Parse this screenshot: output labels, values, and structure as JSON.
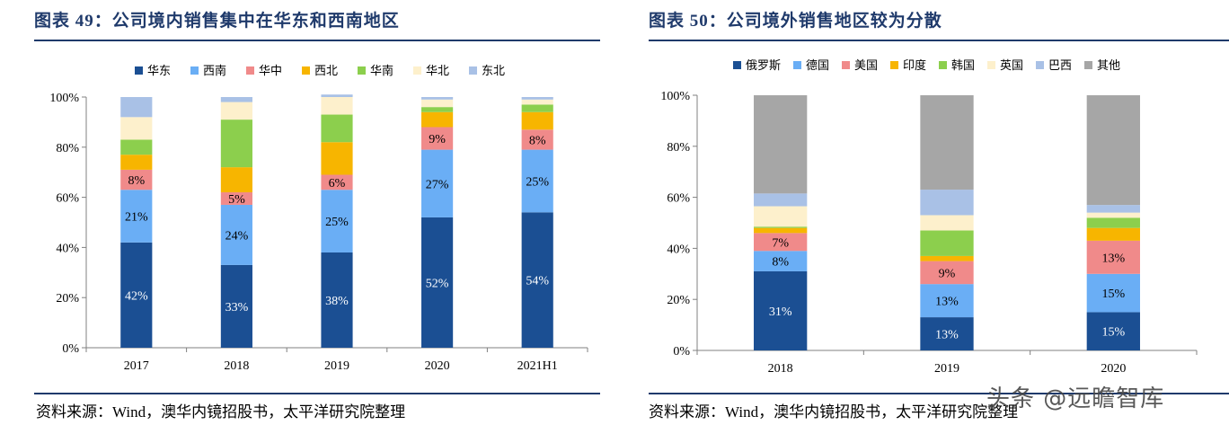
{
  "figures": {
    "left": {
      "title": "图表 49：公司境内销售集中在华东和西南地区",
      "source": "资料来源：Wind，澳华内镜招股书，太平洋研究院整理"
    },
    "right": {
      "title": "图表 50：公司境外销售地区较为分散",
      "source": "资料来源：Wind，澳华内镜招股书，太平洋研究院整理"
    }
  },
  "watermark": "头条 @远瞻智库",
  "chart_data": [
    {
      "type": "bar",
      "stacked": true,
      "categories": [
        "2017",
        "2018",
        "2019",
        "2020",
        "2021H1"
      ],
      "ylim": [
        0,
        100
      ],
      "yticks": [
        "0%",
        "20%",
        "40%",
        "60%",
        "80%",
        "100%"
      ],
      "legend_position": "top",
      "series": [
        {
          "name": "华东",
          "color": "#1b4f93",
          "values": [
            42,
            33,
            38,
            52,
            54
          ],
          "labels": [
            "42%",
            "33%",
            "38%",
            "52%",
            "54%"
          ]
        },
        {
          "name": "西南",
          "color": "#6aaef5",
          "values": [
            21,
            24,
            25,
            27,
            25
          ],
          "labels": [
            "21%",
            "24%",
            "25%",
            "27%",
            "25%"
          ]
        },
        {
          "name": "华中",
          "color": "#f08a8a",
          "values": [
            8,
            5,
            6,
            9,
            8
          ],
          "labels": [
            "8%",
            "5%",
            "6%",
            "9%",
            "8%"
          ]
        },
        {
          "name": "西北",
          "color": "#f7b500",
          "values": [
            6,
            10,
            13,
            6,
            7
          ],
          "labels": [
            "",
            "",
            "",
            "",
            ""
          ]
        },
        {
          "name": "华南",
          "color": "#8ccf4d",
          "values": [
            6,
            19,
            11,
            2,
            3
          ],
          "labels": [
            "",
            "",
            "",
            "",
            ""
          ]
        },
        {
          "name": "华北",
          "color": "#fdf0cc",
          "values": [
            9,
            7,
            7,
            3,
            2
          ],
          "labels": [
            "",
            "",
            "",
            "",
            ""
          ]
        },
        {
          "name": "东北",
          "color": "#a9c1e6",
          "values": [
            8,
            2,
            1,
            1,
            1
          ],
          "labels": [
            "",
            "",
            "",
            "",
            ""
          ]
        }
      ]
    },
    {
      "type": "bar",
      "stacked": true,
      "categories": [
        "2018",
        "2019",
        "2020"
      ],
      "ylim": [
        0,
        100
      ],
      "yticks": [
        "0%",
        "20%",
        "40%",
        "60%",
        "80%",
        "100%"
      ],
      "legend_position": "top",
      "series": [
        {
          "name": "俄罗斯",
          "color": "#1b4f93",
          "values": [
            31,
            13,
            15
          ],
          "labels": [
            "31%",
            "13%",
            "15%"
          ]
        },
        {
          "name": "德国",
          "color": "#6aaef5",
          "values": [
            8,
            13,
            15
          ],
          "labels": [
            "8%",
            "13%",
            "15%"
          ]
        },
        {
          "name": "美国",
          "color": "#f08a8a",
          "values": [
            7,
            9,
            13
          ],
          "labels": [
            "7%",
            "9%",
            "13%"
          ]
        },
        {
          "name": "印度",
          "color": "#f7b500",
          "values": [
            2,
            2,
            5
          ],
          "labels": [
            "",
            "",
            ""
          ]
        },
        {
          "name": "韩国",
          "color": "#8ccf4d",
          "values": [
            0.5,
            10,
            4
          ],
          "labels": [
            "",
            "",
            ""
          ]
        },
        {
          "name": "英国",
          "color": "#fdf0cc",
          "values": [
            8,
            6,
            2
          ],
          "labels": [
            "",
            "",
            ""
          ]
        },
        {
          "name": "巴西",
          "color": "#a9c1e6",
          "values": [
            5,
            10,
            3
          ],
          "labels": [
            "",
            "",
            ""
          ]
        },
        {
          "name": "其他",
          "color": "#a6a6a6",
          "values": [
            38.5,
            37,
            43
          ],
          "labels": [
            "",
            "",
            ""
          ]
        }
      ]
    }
  ]
}
